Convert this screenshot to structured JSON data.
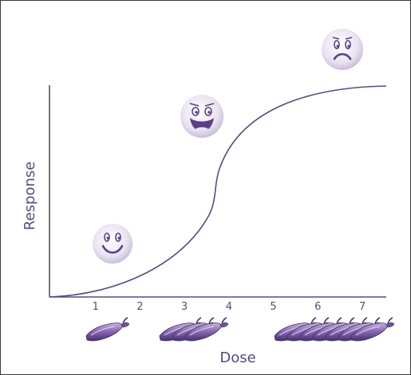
{
  "diagram": {
    "xlabel": "Dose",
    "ylabel": "Response",
    "x_ticks": [
      "1",
      "2",
      "3",
      "4",
      "5",
      "6",
      "7"
    ],
    "x_range": [
      0,
      8
    ],
    "pepper_groups": [
      {
        "name": "pepper-group-1",
        "count": 1,
        "dose_start": 1.3
      },
      {
        "name": "pepper-group-3",
        "count": 3,
        "dose_start": 3.3
      },
      {
        "name": "pepper-group-7",
        "count": 7,
        "dose_start": 5.1
      }
    ],
    "faces": [
      {
        "name": "happy-face-icon",
        "mood": "happy"
      },
      {
        "name": "distressed-face-icon",
        "mood": "distressed"
      },
      {
        "name": "sad-face-icon",
        "mood": "sad"
      }
    ],
    "colors": {
      "axis": "#5b4a7d",
      "face_fill": "#e8e2f0",
      "face_feature": "#5b3f86",
      "pepper_dark": "#5a3d86",
      "pepper_light": "#a98fcb"
    }
  }
}
